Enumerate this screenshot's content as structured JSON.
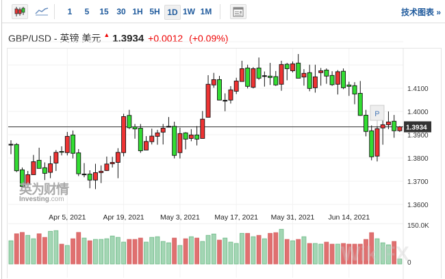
{
  "toolbar": {
    "chart_types": [
      {
        "icon": "candlestick-icon",
        "selected": true
      },
      {
        "icon": "line-chart-icon",
        "selected": false
      }
    ],
    "intervals": [
      {
        "label": "1",
        "selected": false
      },
      {
        "label": "5",
        "selected": false
      },
      {
        "label": "15",
        "selected": false
      },
      {
        "label": "30",
        "selected": false
      },
      {
        "label": "1H",
        "selected": false
      },
      {
        "label": "5H",
        "selected": false
      },
      {
        "label": "1D",
        "selected": true
      },
      {
        "label": "1W",
        "selected": false
      },
      {
        "label": "1M",
        "selected": false
      }
    ],
    "doc_icon": "document-icon",
    "tech_link": "技术图表 »"
  },
  "header": {
    "title": "GBP/USD - 英镑 美元",
    "price": "1.3934",
    "change": "+0.0012",
    "change_pct": "(+0.09%)",
    "direction_icon": "up-arrow-icon"
  },
  "watermark": {
    "cn": "英为财情",
    "en": "Investing",
    "en_suffix": ".com",
    "wikifx": "WikiFX"
  },
  "colors": {
    "up_candle": "#ee3333",
    "down_candle": "#33dd33",
    "vol_up": "#a3d6b4",
    "vol_down": "#e07070",
    "last_label_bg": "#333333"
  },
  "chart_data": {
    "type": "candlestick",
    "title": "GBP/USD - 英镑 美元",
    "ylim": [
      1.358,
      1.433
    ],
    "y_ticks": [
      "1.4100",
      "1.4000",
      "1.3900",
      "1.3800",
      "1.3700",
      "1.3600"
    ],
    "y_tick_values": [
      1.41,
      1.4,
      1.39,
      1.38,
      1.37,
      1.36
    ],
    "x_ticks": [
      {
        "label": "Apr 5, 2021",
        "index": 10
      },
      {
        "label": "Apr 19, 2021",
        "index": 20
      },
      {
        "label": "May 3, 2021",
        "index": 30
      },
      {
        "label": "May 17, 2021",
        "index": 40
      },
      {
        "label": "May 31, 2021",
        "index": 50
      },
      {
        "label": "Jun 14, 2021",
        "index": 60
      }
    ],
    "last_price": "1.3934",
    "last_price_value": 1.3934,
    "marker": {
      "label": "P",
      "index": 65
    },
    "volume_ticks": [
      "150.0K",
      "0"
    ],
    "volume_max": 150,
    "ohlc": [
      [
        1.3859,
        1.3876,
        1.3816,
        1.3859
      ],
      [
        1.3858,
        1.3864,
        1.3739,
        1.3745
      ],
      [
        1.3749,
        1.3759,
        1.3673,
        1.3678
      ],
      [
        1.3685,
        1.3744,
        1.367,
        1.3728
      ],
      [
        1.3728,
        1.3813,
        1.3728,
        1.3784
      ],
      [
        1.379,
        1.3844,
        1.3755,
        1.3755
      ],
      [
        1.3758,
        1.3781,
        1.3705,
        1.3734
      ],
      [
        1.3738,
        1.3809,
        1.3713,
        1.3775
      ],
      [
        1.3778,
        1.3834,
        1.3744,
        1.3824
      ],
      [
        1.3828,
        1.385,
        1.3811,
        1.3827
      ],
      [
        1.3823,
        1.3912,
        1.3811,
        1.3893
      ],
      [
        1.3899,
        1.3918,
        1.3798,
        1.382
      ],
      [
        1.3822,
        1.3838,
        1.3722,
        1.3732
      ],
      [
        1.3731,
        1.3778,
        1.3717,
        1.3731
      ],
      [
        1.3731,
        1.3747,
        1.367,
        1.3705
      ],
      [
        1.3705,
        1.3775,
        1.3666,
        1.3737
      ],
      [
        1.3737,
        1.3768,
        1.3692,
        1.3743
      ],
      [
        1.3746,
        1.3806,
        1.3744,
        1.3774
      ],
      [
        1.3775,
        1.3805,
        1.3759,
        1.3781
      ],
      [
        1.3781,
        1.3842,
        1.3713,
        1.3824
      ],
      [
        1.3823,
        1.399,
        1.3807,
        1.3978
      ],
      [
        1.3983,
        1.4007,
        1.3924,
        1.393
      ],
      [
        1.3934,
        1.3946,
        1.3883,
        1.3925
      ],
      [
        1.3928,
        1.3946,
        1.3822,
        1.3831
      ],
      [
        1.3834,
        1.3894,
        1.3834,
        1.3871
      ],
      [
        1.387,
        1.3926,
        1.3858,
        1.3894
      ],
      [
        1.3893,
        1.3921,
        1.3857,
        1.3908
      ],
      [
        1.3911,
        1.3946,
        1.3858,
        1.3928
      ],
      [
        1.3936,
        1.3976,
        1.3932,
        1.3936
      ],
      [
        1.3936,
        1.3956,
        1.3798,
        1.3811
      ],
      [
        1.3823,
        1.393,
        1.3798,
        1.3905
      ],
      [
        1.3908,
        1.3911,
        1.3837,
        1.3881
      ],
      [
        1.3884,
        1.3924,
        1.3872,
        1.3899
      ],
      [
        1.3899,
        1.3937,
        1.3854,
        1.3881
      ],
      [
        1.3884,
        1.4002,
        1.3884,
        1.3967
      ],
      [
        1.3975,
        1.4156,
        1.3975,
        1.4117
      ],
      [
        1.4114,
        1.4166,
        1.4102,
        1.4137
      ],
      [
        1.4137,
        1.4153,
        1.4049,
        1.4049
      ],
      [
        1.4048,
        1.4078,
        1.4001,
        1.4048
      ],
      [
        1.4049,
        1.4109,
        1.4034,
        1.4093
      ],
      [
        1.4087,
        1.4145,
        1.4075,
        1.4131
      ],
      [
        1.4129,
        1.4218,
        1.4129,
        1.4184
      ],
      [
        1.4187,
        1.4201,
        1.4099,
        1.4108
      ],
      [
        1.4104,
        1.4191,
        1.4099,
        1.4184
      ],
      [
        1.4187,
        1.4232,
        1.4136,
        1.4143
      ],
      [
        1.4154,
        1.4172,
        1.4107,
        1.4154
      ],
      [
        1.4152,
        1.4209,
        1.4114,
        1.4146
      ],
      [
        1.415,
        1.4174,
        1.411,
        1.4114
      ],
      [
        1.4117,
        1.4218,
        1.4089,
        1.4202
      ],
      [
        1.4203,
        1.4209,
        1.4134,
        1.4184
      ],
      [
        1.4175,
        1.4215,
        1.4168,
        1.4205
      ],
      [
        1.4208,
        1.4247,
        1.4143,
        1.4143
      ],
      [
        1.4148,
        1.4182,
        1.4111,
        1.4164
      ],
      [
        1.4167,
        1.4201,
        1.4087,
        1.4099
      ],
      [
        1.4102,
        1.4201,
        1.4081,
        1.4149
      ],
      [
        1.4167,
        1.4187,
        1.4111,
        1.4175
      ],
      [
        1.4178,
        1.4185,
        1.4119,
        1.4152
      ],
      [
        1.4155,
        1.4173,
        1.411,
        1.4115
      ],
      [
        1.4117,
        1.4178,
        1.4073,
        1.4171
      ],
      [
        1.4173,
        1.4185,
        1.4096,
        1.4102
      ],
      [
        1.4114,
        1.4128,
        1.4067,
        1.4108
      ],
      [
        1.4111,
        1.4126,
        1.4031,
        1.4075
      ],
      [
        1.4078,
        1.4131,
        1.3981,
        1.3983
      ],
      [
        1.3984,
        1.4007,
        1.3893,
        1.3914
      ],
      [
        1.3917,
        1.394,
        1.379,
        1.3805
      ],
      [
        1.3808,
        1.3937,
        1.3785,
        1.3926
      ],
      [
        1.3929,
        1.3966,
        1.3857,
        1.3943
      ],
      [
        1.3943,
        1.4,
        1.3924,
        1.3955
      ],
      [
        1.3958,
        1.3985,
        1.3887,
        1.3917
      ],
      [
        1.3917,
        1.3937,
        1.3912,
        1.3934
      ]
    ],
    "volume_k": [
      89.3,
      116.2,
      121.4,
      110.1,
      97.1,
      116.2,
      102.3,
      125.7,
      128.3,
      76.3,
      71.1,
      97.1,
      121.4,
      99.7,
      89.3,
      94.5,
      94.5,
      97.1,
      107.5,
      102.3,
      84.1,
      94.5,
      94.5,
      99.7,
      84.1,
      102.3,
      104.9,
      86.7,
      81.5,
      99.7,
      71.1,
      97.1,
      104.9,
      99.7,
      86.7,
      110.1,
      115.3,
      91.9,
      99.7,
      84.1,
      78.9,
      117.9,
      117.9,
      104.9,
      110.1,
      97.1,
      117.9,
      120.5,
      133.5,
      94.5,
      89.3,
      94.5,
      104.9,
      78.9,
      78.9,
      76.3,
      84.1,
      76.3,
      76.3,
      78.9,
      76.3,
      76.3,
      76.3,
      94.5,
      120.5,
      97.1,
      81.5,
      73.7,
      86.7,
      19.1
    ]
  }
}
